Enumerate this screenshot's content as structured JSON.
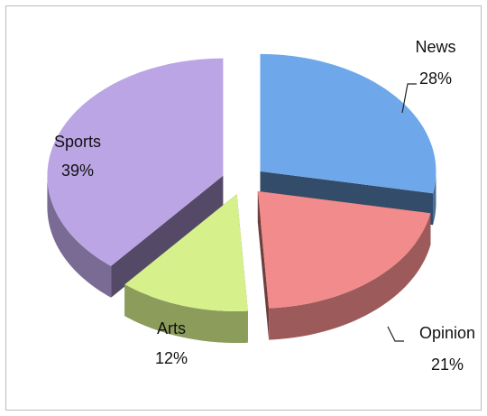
{
  "chart_data": {
    "type": "pie",
    "categories": [
      "News",
      "Opinion",
      "Arts",
      "Sports"
    ],
    "values": [
      28,
      21,
      12,
      39
    ],
    "value_labels": [
      "28%",
      "21%",
      "12%",
      "39%"
    ],
    "colors": [
      "#6fa8ea",
      "#f28b8b",
      "#d6f08c",
      "#bba5e5"
    ]
  }
}
